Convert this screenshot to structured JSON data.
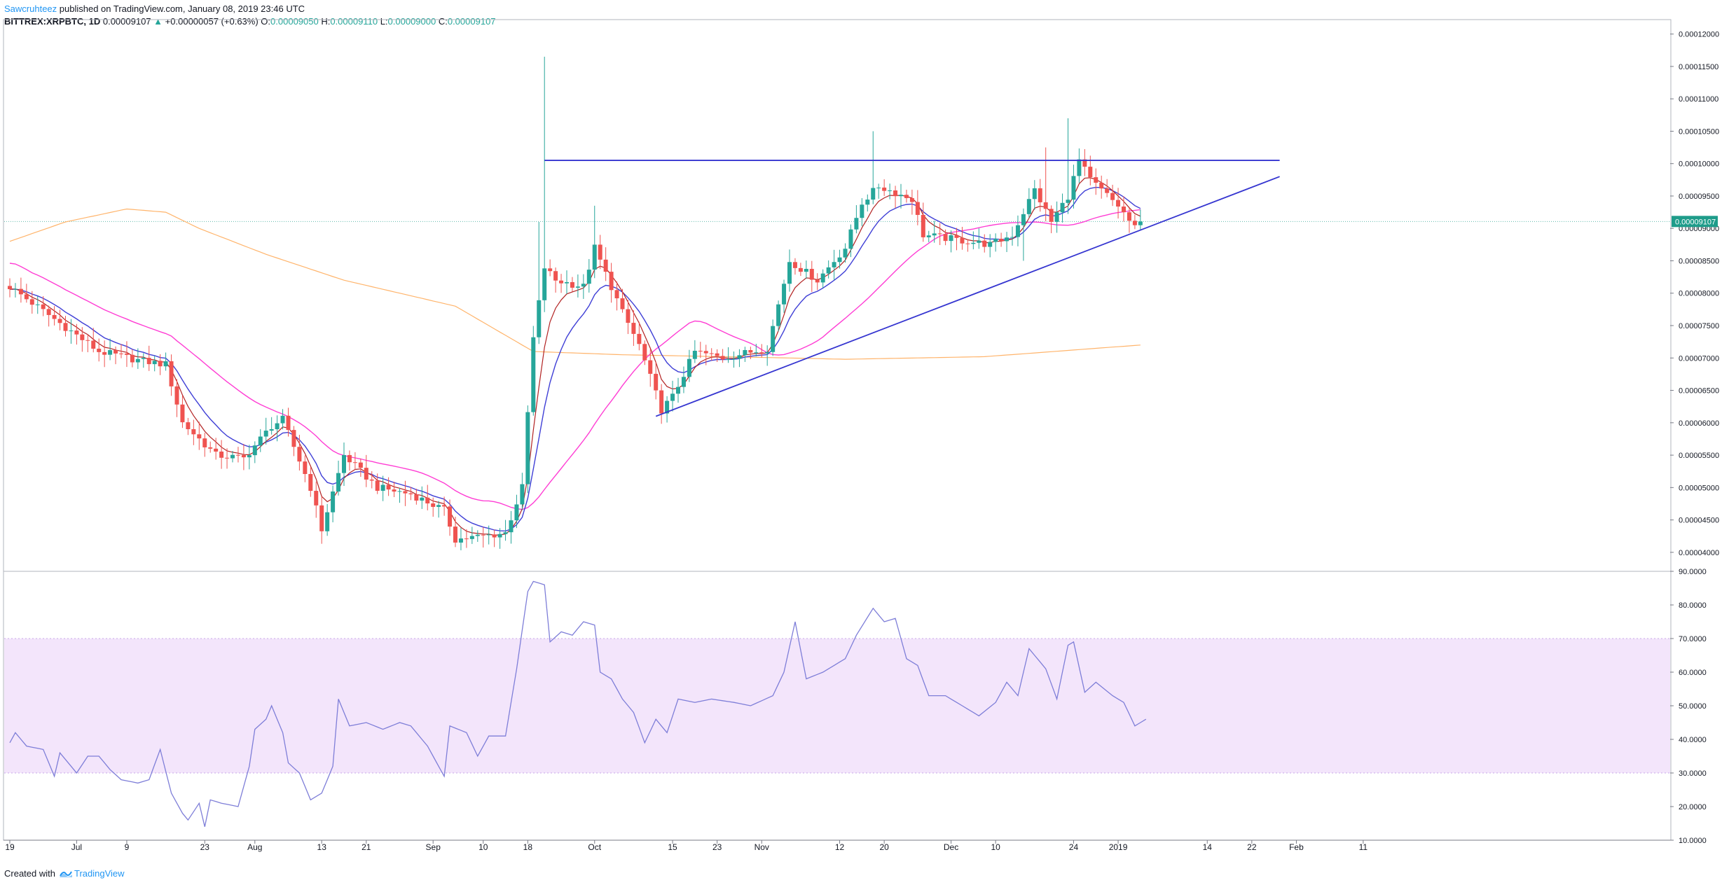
{
  "header": {
    "author": "Sawcruhteez",
    "published_text": "published on TradingView.com, January 08, 2019 23:46 UTC",
    "symbol": "BITTREX:XRPBTC, 1D",
    "last": "0.00009107",
    "change": "+0.00000057 (+0.63%)",
    "o_label": "O:",
    "o_value": "0.00009050",
    "h_label": "H:",
    "h_value": "0.00009110",
    "l_label": "L:",
    "l_value": "0.00009000",
    "c_label": "C:",
    "c_value": "0.00009107"
  },
  "footer": {
    "created_with": "Created with",
    "brand": "TradingView",
    "logo_icon": "tradingview-logo-icon"
  },
  "colors": {
    "up": "#26a69a",
    "down": "#ef5350",
    "ema_fast": "#b22222",
    "ema_mid": "#3f3fd6",
    "sma_pink": "#ff3dd4",
    "sma_orange": "#ffb46b",
    "drawing": "#3535d0",
    "rsi_line": "#7e7ed8",
    "rsi_band": "#f3e5fb",
    "price_marker": "#1e9c8a"
  },
  "chart_data": [
    {
      "type": "candlestick",
      "title": "",
      "price_marker": "0.00009107",
      "ylim": [
        3.75e-05,
        0.0001205
      ],
      "y_ticks": [
        "0.00012000",
        "0.00011500",
        "0.00011000",
        "0.00010500",
        "0.00010000",
        "0.00009500",
        "0.00009000",
        "0.00008500",
        "0.00008000",
        "0.00007500",
        "0.00007000",
        "0.00006500",
        "0.00006000",
        "0.00005500",
        "0.00005000",
        "0.00004500",
        "0.00004000"
      ],
      "x_ticks": [
        "19",
        "Jul",
        "9",
        "23",
        "Aug",
        "13",
        "21",
        "Sep",
        "10",
        "18",
        "Oct",
        "15",
        "23",
        "Nov",
        "12",
        "20",
        "Dec",
        "10",
        "24",
        "2019",
        "14",
        "22",
        "Feb",
        "11"
      ],
      "x_tick_index": [
        0,
        12,
        21,
        35,
        44,
        56,
        64,
        76,
        85,
        93,
        105,
        119,
        127,
        135,
        149,
        157,
        169,
        177,
        191,
        199,
        215,
        223,
        231,
        243
      ],
      "close_anchors": [
        [
          0,
          8.1
        ],
        [
          8,
          7.6
        ],
        [
          16,
          7.1
        ],
        [
          24,
          6.95
        ],
        [
          28,
          6.9
        ],
        [
          31,
          6.0
        ],
        [
          37,
          5.5
        ],
        [
          42,
          5.45
        ],
        [
          47,
          5.95
        ],
        [
          49,
          6.05
        ],
        [
          54,
          5.0
        ],
        [
          56,
          4.35
        ],
        [
          60,
          5.5
        ],
        [
          66,
          5.0
        ],
        [
          72,
          4.9
        ],
        [
          78,
          4.65
        ],
        [
          80,
          4.2
        ],
        [
          85,
          4.25
        ],
        [
          89,
          4.3
        ],
        [
          92,
          5.0
        ],
        [
          94,
          7.3
        ],
        [
          96,
          8.4
        ],
        [
          98,
          8.2
        ],
        [
          103,
          8.1
        ],
        [
          105,
          8.7
        ],
        [
          110,
          7.7
        ],
        [
          113,
          7.2
        ],
        [
          117,
          6.2
        ],
        [
          119,
          6.4
        ],
        [
          123,
          7.1
        ],
        [
          128,
          7.0
        ],
        [
          136,
          7.15
        ],
        [
          140,
          8.5
        ],
        [
          145,
          8.2
        ],
        [
          150,
          8.7
        ],
        [
          153,
          9.4
        ],
        [
          156,
          9.65
        ],
        [
          162,
          9.45
        ],
        [
          164,
          8.9
        ],
        [
          168,
          8.85
        ],
        [
          176,
          8.75
        ],
        [
          180,
          8.9
        ],
        [
          184,
          9.6
        ],
        [
          187,
          9.1
        ],
        [
          190,
          9.5
        ],
        [
          192,
          10.05
        ],
        [
          194,
          9.75
        ],
        [
          199,
          9.35
        ],
        [
          202,
          9.0
        ],
        [
          203,
          9.107
        ]
      ],
      "spikes": [
        [
          96,
          11.65
        ],
        [
          105,
          9.35
        ],
        [
          155,
          10.5
        ],
        [
          186,
          10.25
        ],
        [
          190,
          10.7
        ],
        [
          182,
          8.5
        ],
        [
          95,
          9.1
        ]
      ],
      "series": [
        {
          "name": "",
          "kind": "ema",
          "period": 5
        },
        {
          "name": "",
          "kind": "ema",
          "period": 10
        },
        {
          "name": "",
          "kind": "sma",
          "period": 30
        },
        {
          "name": "",
          "kind": "sma",
          "period": 200
        }
      ],
      "orange_anchors": [
        [
          0,
          8.8
        ],
        [
          10,
          9.1
        ],
        [
          21,
          9.3
        ],
        [
          28,
          9.25
        ],
        [
          34,
          9.0
        ],
        [
          46,
          8.6
        ],
        [
          60,
          8.2
        ],
        [
          80,
          7.8
        ],
        [
          94,
          7.1
        ],
        [
          110,
          7.05
        ],
        [
          140,
          7.0
        ],
        [
          150,
          6.98
        ],
        [
          175,
          7.02
        ],
        [
          203,
          7.2
        ]
      ],
      "annotations": [
        {
          "kind": "horizontal_line",
          "value": 10.05,
          "from": 96,
          "to": 228
        },
        {
          "kind": "trend_line",
          "from": [
            116,
            6.1
          ],
          "to": [
            228,
            9.8
          ]
        }
      ],
      "value_scale": "price in units of 0.00001 BTC"
    },
    {
      "type": "line",
      "title": "",
      "ylim": [
        10,
        90
      ],
      "y_ticks": [
        "90.0000",
        "80.0000",
        "70.0000",
        "60.0000",
        "50.0000",
        "40.0000",
        "30.0000",
        "20.0000",
        "10.0000"
      ],
      "band": [
        30,
        70
      ],
      "rsi_anchors": [
        [
          0,
          39
        ],
        [
          1,
          42
        ],
        [
          3,
          38
        ],
        [
          6,
          37
        ],
        [
          8,
          29
        ],
        [
          9,
          36
        ],
        [
          11,
          32
        ],
        [
          12,
          30
        ],
        [
          14,
          35
        ],
        [
          16,
          35
        ],
        [
          18,
          31
        ],
        [
          20,
          28
        ],
        [
          23,
          27
        ],
        [
          25,
          28
        ],
        [
          27,
          37
        ],
        [
          29,
          24
        ],
        [
          31,
          18
        ],
        [
          32,
          16
        ],
        [
          34,
          21
        ],
        [
          35,
          14
        ],
        [
          36,
          22
        ],
        [
          38,
          21
        ],
        [
          41,
          20
        ],
        [
          43,
          32
        ],
        [
          44,
          43
        ],
        [
          46,
          46
        ],
        [
          47,
          50
        ],
        [
          49,
          42
        ],
        [
          50,
          33
        ],
        [
          52,
          30
        ],
        [
          54,
          22
        ],
        [
          56,
          24
        ],
        [
          58,
          32
        ],
        [
          59,
          52
        ],
        [
          61,
          44
        ],
        [
          64,
          45
        ],
        [
          67,
          43
        ],
        [
          70,
          45
        ],
        [
          72,
          44
        ],
        [
          75,
          38
        ],
        [
          78,
          29
        ],
        [
          79,
          44
        ],
        [
          82,
          42
        ],
        [
          84,
          35
        ],
        [
          86,
          41
        ],
        [
          89,
          41
        ],
        [
          91,
          61
        ],
        [
          93,
          84
        ],
        [
          94,
          87
        ],
        [
          96,
          86
        ],
        [
          97,
          69
        ],
        [
          99,
          72
        ],
        [
          101,
          71
        ],
        [
          103,
          75
        ],
        [
          105,
          74
        ],
        [
          106,
          60
        ],
        [
          108,
          58
        ],
        [
          110,
          52
        ],
        [
          112,
          48
        ],
        [
          114,
          39
        ],
        [
          116,
          46
        ],
        [
          118,
          42
        ],
        [
          120,
          52
        ],
        [
          123,
          51
        ],
        [
          126,
          52
        ],
        [
          130,
          51
        ],
        [
          133,
          50
        ],
        [
          137,
          53
        ],
        [
          139,
          60
        ],
        [
          141,
          75
        ],
        [
          143,
          58
        ],
        [
          146,
          60
        ],
        [
          150,
          64
        ],
        [
          152,
          71
        ],
        [
          155,
          79
        ],
        [
          157,
          75
        ],
        [
          159,
          76
        ],
        [
          161,
          64
        ],
        [
          163,
          62
        ],
        [
          165,
          53
        ],
        [
          168,
          53
        ],
        [
          171,
          50
        ],
        [
          174,
          47
        ],
        [
          177,
          51
        ],
        [
          179,
          57
        ],
        [
          181,
          53
        ],
        [
          183,
          67
        ],
        [
          186,
          61
        ],
        [
          188,
          52
        ],
        [
          190,
          68
        ],
        [
          191,
          69
        ],
        [
          193,
          54
        ],
        [
          195,
          57
        ],
        [
          198,
          53
        ],
        [
          200,
          51
        ],
        [
          202,
          44
        ],
        [
          204,
          46
        ]
      ]
    }
  ]
}
